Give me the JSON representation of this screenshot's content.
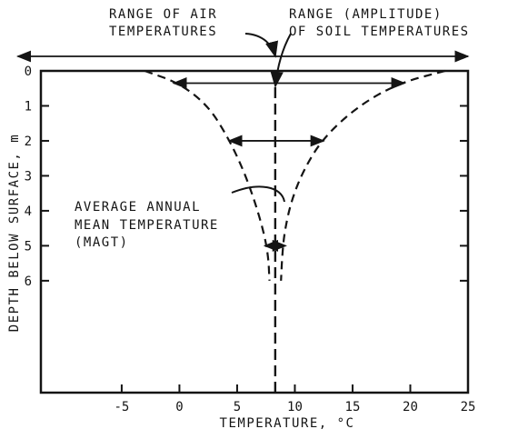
{
  "chart_data": {
    "type": "line",
    "title": "",
    "xlabel": "TEMPERATURE, °C",
    "ylabel": "DEPTH BELOW SURFACE, m",
    "xlim": [
      -12,
      25
    ],
    "ylim": [
      9.2,
      0
    ],
    "x_ticks": [
      -5,
      0,
      5,
      10,
      15,
      20,
      25
    ],
    "y_ticks": [
      0,
      1,
      2,
      3,
      4,
      5,
      6
    ],
    "grid": false,
    "colors": {
      "ink": "#141414",
      "background": "#ffffff"
    },
    "series": [
      {
        "points": [
          [
            -3,
            0
          ],
          [
            0,
            0.35
          ],
          [
            2.5,
            1.0
          ],
          [
            4.2,
            1.9
          ],
          [
            5.5,
            2.8
          ],
          [
            6.5,
            3.7
          ],
          [
            7.3,
            4.6
          ],
          [
            7.7,
            5.3
          ],
          [
            7.8,
            6.0
          ]
        ]
      },
      {
        "points": [
          [
            23,
            0
          ],
          [
            19,
            0.35
          ],
          [
            15.5,
            1.0
          ],
          [
            12.5,
            1.9
          ],
          [
            10.8,
            2.8
          ],
          [
            9.7,
            3.7
          ],
          [
            9.1,
            4.6
          ],
          [
            8.9,
            5.3
          ],
          [
            8.8,
            6.0
          ]
        ]
      }
    ],
    "mean_line": {
      "x": 8.3
    },
    "amplitude_arrows": [
      {
        "depth": 0.35,
        "from": -0.5,
        "to": 19.5
      },
      {
        "depth": 2.0,
        "from": 4.3,
        "to": 12.5
      },
      {
        "depth": 5.0,
        "from": 7.4,
        "to": 9.2
      }
    ],
    "air_range_arrow": {
      "from": -14,
      "to": 25
    },
    "annotations": {
      "air_range": [
        "RANGE OF AIR",
        "TEMPERATURES"
      ],
      "soil_range": [
        "RANGE (AMPLITUDE)",
        "OF SOIL TEMPERATURES"
      ],
      "magt": [
        "AVERAGE ANNUAL",
        "MEAN TEMPERATURE",
        "(MAGT)"
      ]
    }
  }
}
